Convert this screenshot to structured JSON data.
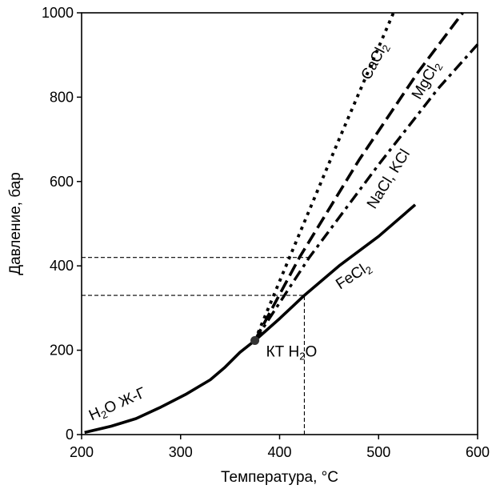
{
  "chart_data": {
    "type": "line",
    "xlabel": "Температура, °C",
    "ylabel": "Давление, бар",
    "xlim": [
      200,
      600
    ],
    "ylim": [
      0,
      1000
    ],
    "xticks": [
      200,
      300,
      400,
      500,
      600
    ],
    "yticks": [
      0,
      200,
      400,
      600,
      800,
      1000
    ],
    "grid": false,
    "legend": "none",
    "series": [
      {
        "name": "H2O Ж-Г",
        "style": "solid",
        "color": "#000000",
        "x": [
          203,
          230,
          255,
          280,
          305,
          330,
          345,
          360,
          375
        ],
        "y": [
          5,
          20,
          38,
          65,
          95,
          130,
          160,
          195,
          223
        ]
      },
      {
        "name": "FeCl2",
        "style": "solid",
        "color": "#000000",
        "x": [
          375,
          400,
          425,
          460,
          500,
          537
        ],
        "y": [
          223,
          275,
          330,
          400,
          470,
          545
        ]
      },
      {
        "name": "NaCl, KCl",
        "style": "dashdot",
        "color": "#000000",
        "x": [
          375,
          430,
          500,
          560,
          600
        ],
        "y": [
          223,
          420,
          640,
          820,
          925
        ]
      },
      {
        "name": "MgCl2",
        "style": "dashed",
        "color": "#000000",
        "x": [
          375,
          420,
          480,
          540,
          585
        ],
        "y": [
          223,
          420,
          650,
          860,
          1000
        ]
      },
      {
        "name": "CaCl2",
        "style": "dotted",
        "color": "#000000",
        "x": [
          375,
          410,
          460,
          515
        ],
        "y": [
          223,
          420,
          700,
          1000
        ]
      }
    ],
    "critical_point": {
      "x": 375,
      "y": 223,
      "label_text": "КТ H",
      "label_sub": "2",
      "label_tail": "O"
    },
    "reference_lines": [
      {
        "y": 420,
        "x_end": 430
      },
      {
        "y": 330,
        "x_end": 425
      },
      {
        "x": 425,
        "y_end": 330
      }
    ],
    "annotations": [
      {
        "id": "h2o",
        "text": "H",
        "sub": "2",
        "tail": "O Ж-Г",
        "x": 238,
        "y": 62,
        "angle": -24
      },
      {
        "id": "fecl2",
        "text": "FeCl",
        "sub": "2",
        "tail": "",
        "x": 477,
        "y": 368,
        "angle": -33
      },
      {
        "id": "nacl",
        "text": "NaCl, KCl",
        "sub": "",
        "tail": "",
        "x": 514,
        "y": 600,
        "angle": -58
      },
      {
        "id": "mgcl2",
        "text": "MgCl",
        "sub": "2",
        "tail": "",
        "x": 552,
        "y": 835,
        "angle": -60
      },
      {
        "id": "cacl2",
        "text": "CaCl",
        "sub": "2",
        "tail": "",
        "x": 500,
        "y": 880,
        "angle": -62
      }
    ]
  }
}
